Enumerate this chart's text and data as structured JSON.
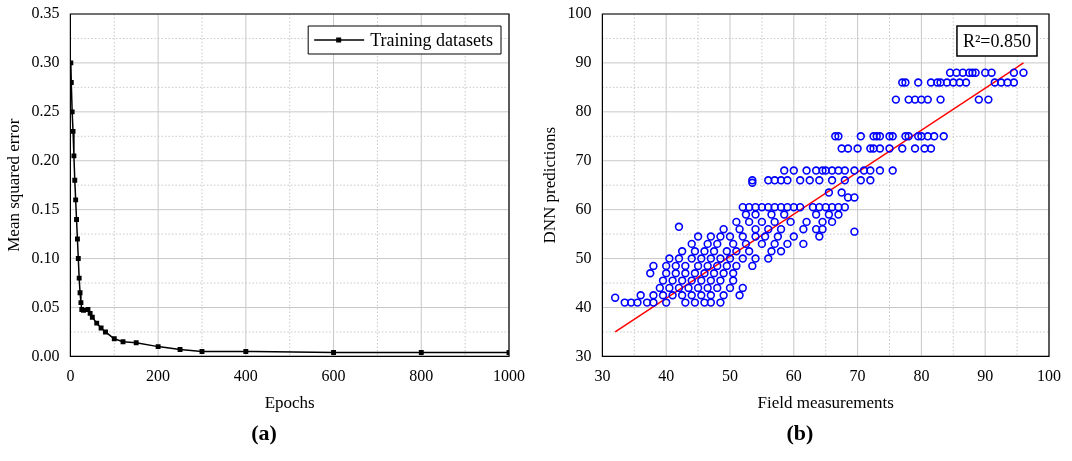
{
  "chart_data": [
    {
      "type": "line",
      "xlabel": "Epochs",
      "ylabel": "Mean squared error",
      "legend": "top right",
      "grid": true,
      "annotations": [
        "(a)"
      ],
      "xlim": [
        0,
        1000
      ],
      "xticks": [
        0,
        {
          "value": 100,
          "label": null
        },
        200,
        {
          "value": 300,
          "label": null
        },
        400,
        {
          "value": 500,
          "label": null
        },
        600,
        {
          "value": 700,
          "label": null
        },
        800,
        {
          "value": 900,
          "label": null
        },
        1000
      ],
      "ylim": [
        0,
        0.35
      ],
      "yticks": [
        {
          "value": 0,
          "label": "0.00"
        },
        {
          "value": 0.025,
          "label": null
        },
        {
          "value": 0.05,
          "label": "0.05"
        },
        {
          "value": 0.075,
          "label": null
        },
        {
          "value": 0.1,
          "label": "0.10"
        },
        {
          "value": 0.125,
          "label": null
        },
        {
          "value": 0.15,
          "label": "0.15"
        },
        {
          "value": 0.175,
          "label": null
        },
        {
          "value": 0.2,
          "label": "0.20"
        },
        {
          "value": 0.225,
          "label": null
        },
        {
          "value": 0.25,
          "label": "0.25"
        },
        {
          "value": 0.275,
          "label": null
        },
        {
          "value": 0.3,
          "label": "0.30"
        },
        {
          "value": 0.325,
          "label": null
        },
        {
          "value": 0.35,
          "label": "0.35"
        }
      ],
      "series": [
        {
          "name": "Training datasets",
          "color": "#000000",
          "marker": "square",
          "x": [
            1,
            2,
            4,
            6,
            8,
            10,
            12,
            14,
            16,
            18,
            20,
            22,
            24,
            26,
            30,
            40,
            45,
            50,
            60,
            70,
            80,
            100,
            120,
            150,
            200,
            250,
            300,
            400,
            600,
            800,
            1000
          ],
          "values": [
            0.3,
            0.28,
            0.25,
            0.23,
            0.205,
            0.18,
            0.16,
            0.14,
            0.12,
            0.1,
            0.08,
            0.065,
            0.055,
            0.048,
            0.047,
            0.048,
            0.044,
            0.04,
            0.034,
            0.029,
            0.025,
            0.018,
            0.015,
            0.014,
            0.01,
            0.007,
            0.005,
            0.005,
            0.004,
            0.004,
            0.004
          ]
        }
      ]
    },
    {
      "type": "scatter",
      "xlabel": "Field measurements",
      "ylabel": "DNN predictions",
      "grid": true,
      "annotations": [
        "R²=0.850",
        "(b)"
      ],
      "xlim": [
        30,
        100
      ],
      "xticks": [
        30,
        {
          "value": 35,
          "label": null
        },
        40,
        {
          "value": 45,
          "label": null
        },
        50,
        {
          "value": 55,
          "label": null
        },
        60,
        {
          "value": 65,
          "label": null
        },
        70,
        {
          "value": 75,
          "label": null
        },
        80,
        {
          "value": 85,
          "label": null
        },
        90,
        {
          "value": 95,
          "label": null
        },
        100
      ],
      "ylim": [
        30,
        100
      ],
      "yticks": [
        30,
        {
          "value": 35,
          "label": null
        },
        40,
        {
          "value": 45,
          "label": null
        },
        50,
        {
          "value": 55,
          "label": null
        },
        60,
        {
          "value": 65,
          "label": null
        },
        70,
        {
          "value": 75,
          "label": null
        },
        80,
        {
          "value": 85,
          "label": null
        },
        90,
        {
          "value": 95,
          "label": null
        },
        100
      ],
      "series": [
        {
          "color": "#0000ff",
          "marker": "circle",
          "x": [
            84.5,
            85.5,
            86.5,
            87.5,
            88,
            88.5,
            90,
            91,
            94.5,
            96,
            77,
            77.5,
            79.5,
            81.5,
            82.5,
            83,
            84,
            85,
            86,
            87,
            91.5,
            92.5,
            93.5,
            94.5,
            76,
            78,
            79,
            80,
            81,
            83,
            89,
            90.5,
            66.5,
            67,
            70.5,
            72.5,
            73,
            73.5,
            75,
            75.5,
            77.5,
            78,
            79.5,
            80,
            81,
            82,
            83.5,
            67.5,
            68.5,
            70,
            72,
            72.5,
            73.5,
            75,
            77,
            79,
            80.5,
            81.5,
            58.5,
            60,
            62,
            63.5,
            64.5,
            65,
            66,
            67,
            68,
            69.5,
            71,
            72,
            73.5,
            75.5,
            53.5,
            56,
            57,
            58,
            59,
            61,
            62.5,
            64,
            66,
            68,
            70.5,
            72,
            65.5,
            67.5,
            68.5,
            69.5,
            52,
            53,
            54,
            55,
            56,
            57,
            58,
            59,
            60,
            61,
            63,
            64,
            65,
            66,
            67,
            68,
            52.5,
            54,
            56.5,
            58.5,
            63.5,
            65.5,
            67,
            51,
            53,
            55,
            57,
            59.5,
            62,
            64.5,
            66,
            49,
            51.5,
            54,
            56,
            58,
            61.5,
            63.5,
            64.5,
            45,
            47,
            48.5,
            50,
            52,
            54,
            55.5,
            57.5,
            60,
            64,
            44,
            46.5,
            48,
            50.5,
            52.5,
            55,
            57,
            59,
            61.5,
            42.5,
            44.5,
            46,
            47.5,
            49.5,
            51,
            53,
            56.5,
            58,
            40.5,
            42,
            44,
            45.5,
            47,
            48.5,
            50,
            52,
            54,
            56,
            38,
            40,
            41.5,
            43,
            45,
            46.5,
            48,
            49.5,
            51,
            53.5,
            37.5,
            40,
            41.5,
            43,
            44.5,
            46,
            47.5,
            49,
            50.5,
            39.5,
            41,
            42.5,
            44,
            45.5,
            47,
            48.5,
            50.5,
            39,
            40.5,
            42,
            43.5,
            45,
            46.5,
            48,
            50,
            52,
            36,
            38,
            39.5,
            41,
            42.5,
            44,
            45.5,
            47,
            49,
            51.5,
            33.5,
            34.5,
            35.5,
            37,
            38,
            40,
            43,
            44.5,
            46,
            47,
            48.5,
            53.5,
            69.5,
            42,
            32
          ],
          "values": [
            88,
            88,
            88,
            88,
            88,
            88,
            88,
            88,
            88,
            88,
            86,
            86,
            86,
            86,
            86,
            86,
            86,
            86,
            86,
            86,
            86,
            86,
            86,
            86,
            82.5,
            82.5,
            82.5,
            82.5,
            82.5,
            82.5,
            82.5,
            82.5,
            75,
            75,
            75,
            75,
            75,
            75,
            75,
            75,
            75,
            75,
            75,
            75,
            75,
            75,
            75,
            72.5,
            72.5,
            72.5,
            72.5,
            72.5,
            72.5,
            72.5,
            72.5,
            72.5,
            72.5,
            72.5,
            68,
            68,
            68,
            68,
            68,
            68,
            68,
            68,
            68,
            68,
            68,
            68,
            68,
            68,
            66,
            66,
            66,
            66,
            66,
            66,
            66,
            66,
            66,
            66,
            66,
            66,
            63.5,
            63.5,
            62.5,
            62.5,
            60.5,
            60.5,
            60.5,
            60.5,
            60.5,
            60.5,
            60.5,
            60.5,
            60.5,
            60.5,
            60.5,
            60.5,
            60.5,
            60.5,
            60.5,
            60.5,
            59,
            59,
            59,
            59,
            59,
            59,
            59,
            57.5,
            57.5,
            57.5,
            57.5,
            57.5,
            57.5,
            57.5,
            57.5,
            56,
            56,
            56,
            56,
            56,
            56,
            56,
            56,
            54.5,
            54.5,
            54.5,
            54.5,
            54.5,
            54.5,
            54.5,
            54.5,
            54.5,
            54.5,
            53,
            53,
            53,
            53,
            53,
            53,
            53,
            53,
            53,
            51.5,
            51.5,
            51.5,
            51.5,
            51.5,
            51.5,
            51.5,
            51.5,
            51.5,
            50,
            50,
            50,
            50,
            50,
            50,
            50,
            50,
            50,
            50,
            48.5,
            48.5,
            48.5,
            48.5,
            48.5,
            48.5,
            48.5,
            48.5,
            48.5,
            48.5,
            47,
            47,
            47,
            47,
            47,
            47,
            47,
            47,
            47,
            45.5,
            45.5,
            45.5,
            45.5,
            45.5,
            45.5,
            45.5,
            45.5,
            44,
            44,
            44,
            44,
            44,
            44,
            44,
            44,
            44,
            42.5,
            42.5,
            42.5,
            42.5,
            42.5,
            42.5,
            42.5,
            42.5,
            42.5,
            42.5,
            41,
            41,
            41,
            41,
            41,
            41,
            41,
            41,
            41,
            41,
            41,
            65.5,
            55.5,
            56.5,
            42
          ]
        },
        {
          "type": "line",
          "color": "#ff0000",
          "marker": "none",
          "x": [
            32,
            96
          ],
          "values": [
            35,
            90
          ]
        }
      ]
    }
  ]
}
